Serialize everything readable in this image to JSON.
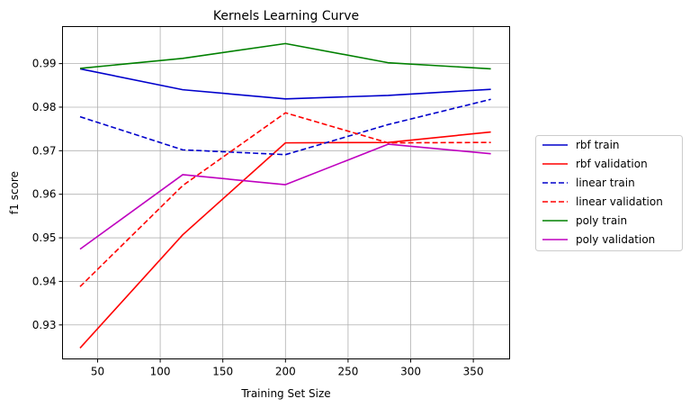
{
  "chart_data": {
    "type": "line",
    "title": "Kernels Learning Curve",
    "xlabel": "Training Set Size",
    "ylabel": "f1 score",
    "xlim": [
      22,
      379
    ],
    "ylim": [
      0.9222,
      0.9985
    ],
    "xticks": [
      50,
      100,
      150,
      200,
      250,
      300,
      350
    ],
    "yticks": [
      0.93,
      0.94,
      0.95,
      0.96,
      0.97,
      0.98,
      0.99
    ],
    "grid": true,
    "legend_position": "outside-right",
    "x": [
      36,
      118,
      200,
      282,
      364
    ],
    "series": [
      {
        "name": "rbf train",
        "color": "#0000cc",
        "dash": "solid",
        "values": [
          0.9888,
          0.984,
          0.9819,
          0.9827,
          0.9841
        ]
      },
      {
        "name": "rbf validation",
        "color": "#ff0000",
        "dash": "solid",
        "values": [
          0.9247,
          0.9507,
          0.9718,
          0.9719,
          0.9743
        ]
      },
      {
        "name": "linear train",
        "color": "#0000cc",
        "dash": "dashed",
        "values": [
          0.9778,
          0.9702,
          0.9691,
          0.976,
          0.9818
        ]
      },
      {
        "name": "linear validation",
        "color": "#ff0000",
        "dash": "dashed",
        "values": [
          0.9388,
          0.962,
          0.9787,
          0.9718,
          0.9719
        ]
      },
      {
        "name": "poly train",
        "color": "#008000",
        "dash": "solid",
        "values": [
          0.9889,
          0.9912,
          0.9946,
          0.9902,
          0.9888
        ]
      },
      {
        "name": "poly validation",
        "color": "#bf00bf",
        "dash": "solid",
        "values": [
          0.9474,
          0.9645,
          0.9622,
          0.9715,
          0.9693
        ]
      }
    ]
  }
}
